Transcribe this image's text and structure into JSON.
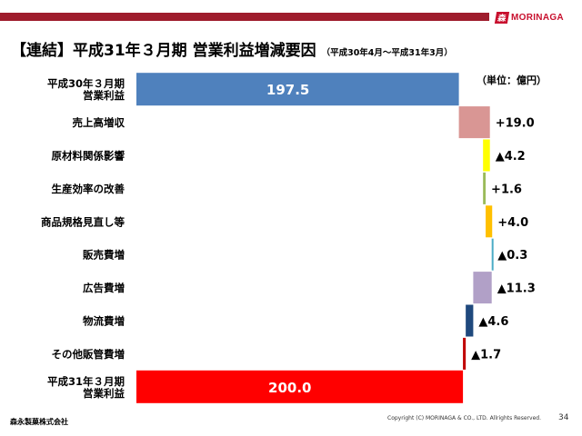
{
  "header": {
    "logo_mark": "森",
    "logo_text": "MORINAGA",
    "title": "【連結】平成31年３月期 営業利益増減要因",
    "subtitle": "（平成30年4月～平成31年3月）",
    "unit": "（単位：億円）"
  },
  "colors": {
    "brand_bar": "#9e1c2c",
    "brand_red": "#c8102e"
  },
  "chart_data": {
    "type": "bar",
    "subtype": "waterfall",
    "orientation": "horizontal",
    "title": "【連結】平成31年３月期 営業利益増減要因",
    "unit": "（単位：億円）",
    "xlim": [
      0,
      220
    ],
    "grid": false,
    "legend": "none",
    "bars": [
      {
        "label": "平成30年３月期\n営業利益",
        "kind": "total",
        "start": 0,
        "end": 197.5,
        "display": "197.5",
        "color": "#4f81bd"
      },
      {
        "label": "売上高増収",
        "kind": "increase",
        "start": 197.5,
        "end": 216.5,
        "display": "+19.0",
        "color": "#d99694"
      },
      {
        "label": "原材料関係影響",
        "kind": "decrease",
        "start": 212.3,
        "end": 216.5,
        "display": "▲4.2",
        "color": "#ffff00"
      },
      {
        "label": "生産効率の改善",
        "kind": "increase",
        "start": 212.3,
        "end": 213.9,
        "display": "+1.6",
        "color": "#9bbb59"
      },
      {
        "label": "商品規格見直し等",
        "kind": "increase",
        "start": 213.9,
        "end": 217.9,
        "display": "+4.0",
        "color": "#ffc000"
      },
      {
        "label": "販売費増",
        "kind": "decrease",
        "start": 217.6,
        "end": 217.9,
        "display": "▲0.3",
        "color": "#4bacc6"
      },
      {
        "label": "広告費増",
        "kind": "decrease",
        "start": 206.3,
        "end": 217.6,
        "display": "▲11.3",
        "color": "#b1a0c7"
      },
      {
        "label": "物流費増",
        "kind": "decrease",
        "start": 201.7,
        "end": 206.3,
        "display": "▲4.6",
        "color": "#1f497d"
      },
      {
        "label": "その他販管費増",
        "kind": "decrease",
        "start": 200.0,
        "end": 201.7,
        "display": "▲1.7",
        "color": "#c00000"
      },
      {
        "label": "平成31年３月期\n営業利益",
        "kind": "total",
        "start": 0,
        "end": 200.0,
        "display": "200.0",
        "color": "#ff0000"
      }
    ]
  },
  "footer": {
    "company": "森永製菓株式会社",
    "copyright": "Copyright (C) MORINAGA & CO., LTD. Allrights Reserved.",
    "page": "34"
  }
}
